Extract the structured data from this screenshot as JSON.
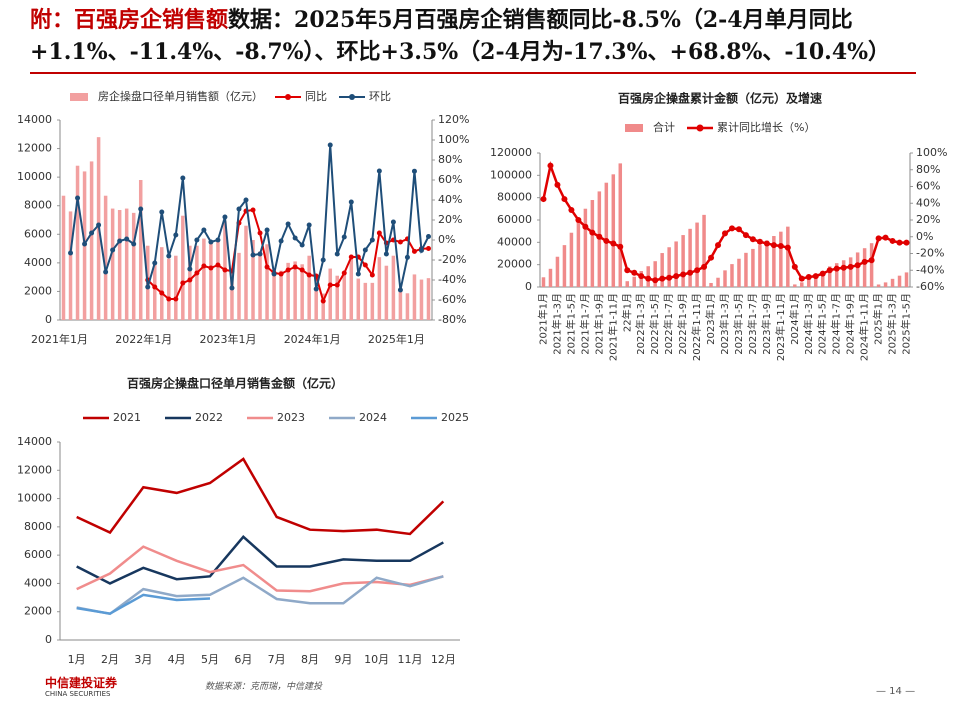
{
  "header": {
    "title_highlight": "附：百强房企销售额",
    "title_rest": "数据：2025年5月百强房企销售额同比-8.5%（2-4月单月同比+1.1%、-11.4%、-8.7%）、环比+3.5%（2-4月为-17.3%、+68.8%、-10.4%）"
  },
  "footer": {
    "logo": "中信建投证券",
    "logo_en": "CHINA SECURITIES",
    "source": "数据来源：克而瑞，中信建投",
    "page": "— 14 —"
  },
  "chart_data": [
    {
      "type": "bar_line",
      "categories": [
        "2021年1月",
        null,
        null,
        null,
        null,
        null,
        null,
        null,
        null,
        null,
        null,
        null,
        "2022年1月",
        null,
        null,
        null,
        null,
        null,
        null,
        null,
        null,
        null,
        null,
        null,
        "2023年1月",
        null,
        null,
        null,
        null,
        null,
        null,
        null,
        null,
        null,
        null,
        null,
        "2024年1月",
        null,
        null,
        null,
        null,
        null,
        null,
        null,
        null,
        null,
        null,
        null,
        "2025年1月",
        null,
        null,
        null,
        null
      ],
      "ylim": [
        0,
        14000
      ],
      "yticks": [
        0,
        2000,
        4000,
        6000,
        8000,
        10000,
        12000,
        14000
      ],
      "y2lim": [
        -80,
        120
      ],
      "y2ticks": [
        {
          "value": -80,
          "label": "-80%"
        },
        {
          "value": -60,
          "label": "-60%"
        },
        {
          "value": -40,
          "label": "-40%"
        },
        {
          "value": -20,
          "label": "-20%"
        },
        {
          "value": 0,
          "label": "0%"
        },
        {
          "value": 20,
          "label": "20%"
        },
        {
          "value": 40,
          "label": "40%"
        },
        {
          "value": 60,
          "label": "60%"
        },
        {
          "value": 80,
          "label": "80%"
        },
        {
          "value": 100,
          "label": "100%"
        },
        {
          "value": 120,
          "label": "120%"
        }
      ],
      "series": [
        {
          "name": "房企操盘口径单月销售额（亿元）",
          "kind": "bar",
          "color": "#f2a0a0",
          "values": [
            8700,
            7600,
            10800,
            10400,
            11100,
            12800,
            8700,
            7800,
            7700,
            7800,
            7500,
            9800,
            5200,
            4000,
            5100,
            4300,
            4500,
            7300,
            5200,
            5200,
            5700,
            5600,
            5600,
            6900,
            3600,
            4700,
            6600,
            5600,
            4800,
            5300,
            3500,
            3450,
            4000,
            4100,
            3900,
            4500,
            2300,
            1850,
            3600,
            3100,
            3200,
            4400,
            2900,
            2600,
            2600,
            4400,
            3800,
            4500,
            2250,
            1870,
            3190,
            2830,
            2930
          ]
        },
        {
          "name": "同比",
          "kind": "line",
          "axis": "y2",
          "color": "#e00000",
          "values": [
            null,
            null,
            null,
            null,
            null,
            null,
            null,
            null,
            null,
            null,
            null,
            null,
            -40,
            -47,
            -53,
            -59,
            -59,
            -43,
            -40,
            -33,
            -26,
            -28,
            -25,
            -30,
            -31,
            17,
            29,
            30,
            7,
            -27,
            -33,
            -34,
            -30,
            -27,
            -30,
            -35,
            -36,
            -61,
            -45,
            -45,
            -33,
            -17,
            -17,
            -25,
            -35,
            7,
            -3,
            0,
            -2,
            1.1,
            -11.4,
            -8.7,
            -8.5
          ]
        },
        {
          "name": "环比",
          "kind": "line",
          "axis": "y2",
          "color": "#1f4e79",
          "values": [
            null,
            -13,
            42,
            -4,
            7,
            15,
            -32,
            -10,
            -1,
            1,
            -4,
            31,
            -47,
            -23,
            28,
            -16,
            5,
            62,
            -29,
            0,
            10,
            -2,
            0,
            23,
            -48,
            31,
            40,
            -15,
            -14,
            10,
            -34,
            -1,
            16,
            2,
            -5,
            15,
            -49,
            -20,
            95,
            -14,
            3,
            38,
            -34,
            -10,
            0,
            69,
            -14,
            18,
            -50,
            -17.3,
            68.8,
            -10.4,
            3.5
          ]
        }
      ]
    },
    {
      "type": "bar_line",
      "title": "百强房企操盘累计金额（亿元）及增速",
      "rotate_labels": true,
      "categories": [
        "2021年1月",
        null,
        "2021年1-3月",
        null,
        "2021年1-5月",
        null,
        "2021年1-7月",
        null,
        "2021年1-9月",
        null,
        "2021年1-11月",
        null,
        "22年1月",
        null,
        "2022年1-3月",
        null,
        "2022年1-5月",
        null,
        "2022年1-7月",
        null,
        "2022年1-9月",
        null,
        "2022年1-11月",
        null,
        "2023年1月",
        null,
        "2023年1-3月",
        null,
        "2023年1-5月",
        null,
        "2023年1-7月",
        null,
        "2023年1-9月",
        null,
        "2023年1-11月",
        null,
        "2024年1月",
        null,
        "2024年1-3月",
        null,
        "2024年1-5月",
        null,
        "2024年1-7月",
        null,
        "2024年1-9月",
        null,
        "2024年1-11月",
        null,
        "2025年1月",
        null,
        "2025年1-3月",
        null,
        "2025年1-5月"
      ],
      "ylim": [
        0,
        120000
      ],
      "yticks": [
        0,
        20000,
        40000,
        60000,
        80000,
        100000,
        120000
      ],
      "y2lim": [
        -60,
        100
      ],
      "y2ticks": [
        {
          "value": -60,
          "label": "-60%"
        },
        {
          "value": -40,
          "label": "-40%"
        },
        {
          "value": -20,
          "label": "-20%"
        },
        {
          "value": 0,
          "label": "0%"
        },
        {
          "value": 20,
          "label": "20%"
        },
        {
          "value": 40,
          "label": "40%"
        },
        {
          "value": 60,
          "label": "60%"
        },
        {
          "value": 80,
          "label": "80%"
        },
        {
          "value": 100,
          "label": "100%"
        }
      ],
      "series": [
        {
          "name": "合计",
          "kind": "bar",
          "color": "#f08a8a",
          "values": [
            8700,
            16300,
            27100,
            37500,
            48600,
            61400,
            70100,
            77900,
            85600,
            93400,
            100900,
            110700,
            5200,
            9200,
            14300,
            18600,
            23100,
            30400,
            35600,
            40800,
            46500,
            52100,
            57700,
            64600,
            3600,
            8300,
            14900,
            20500,
            25300,
            30600,
            34100,
            37550,
            41550,
            45650,
            49550,
            54050,
            2300,
            4150,
            7750,
            10850,
            14050,
            18450,
            21350,
            23950,
            26550,
            30950,
            34750,
            39250,
            2250,
            4120,
            7310,
            10140,
            13070
          ]
        },
        {
          "name": "累计同比增长（%）",
          "kind": "line",
          "axis": "y2",
          "color": "#e00000",
          "values": [
            45,
            85,
            62,
            45,
            32,
            20,
            12,
            5,
            0,
            -5,
            -8,
            -12,
            -40,
            -43,
            -47,
            -50,
            -52,
            -50,
            -49,
            -47,
            -45,
            -43,
            -40,
            -36,
            -25,
            -10,
            4,
            10,
            9,
            2,
            -3,
            -6,
            -8,
            -10,
            -11,
            -13,
            -36,
            -50,
            -48,
            -47,
            -44,
            -40,
            -38,
            -37,
            -36,
            -34,
            -30,
            -28,
            -2,
            -1,
            -5,
            -7,
            -7
          ]
        }
      ]
    },
    {
      "type": "line",
      "title": "百强房企操盘口径单月销售金额（亿元）",
      "categories": [
        "1月",
        "2月",
        "3月",
        "4月",
        "5月",
        "6月",
        "7月",
        "8月",
        "9月",
        "10月",
        "11月",
        "12月"
      ],
      "ylim": [
        0,
        14000
      ],
      "yticks": [
        0,
        2000,
        4000,
        6000,
        8000,
        10000,
        12000,
        14000
      ],
      "series": [
        {
          "name": "2021",
          "color": "#c00000",
          "values": [
            8700,
            7600,
            10800,
            10400,
            11100,
            12800,
            8700,
            7800,
            7700,
            7800,
            7500,
            9800
          ]
        },
        {
          "name": "2022",
          "color": "#17375e",
          "values": [
            5200,
            4000,
            5100,
            4300,
            4500,
            7300,
            5200,
            5200,
            5700,
            5600,
            5600,
            6900
          ]
        },
        {
          "name": "2023",
          "color": "#f08c8c",
          "values": [
            3600,
            4700,
            6600,
            5600,
            4800,
            5300,
            3500,
            3450,
            4000,
            4100,
            3900,
            4500
          ]
        },
        {
          "name": "2024",
          "color": "#8fa9c8",
          "values": [
            2300,
            1850,
            3600,
            3100,
            3200,
            4400,
            2900,
            2600,
            2600,
            4400,
            3800,
            4500
          ]
        },
        {
          "name": "2025",
          "color": "#5b9bd5",
          "values": [
            2250,
            1870,
            3190,
            2830,
            2930,
            null,
            null,
            null,
            null,
            null,
            null,
            null
          ]
        }
      ]
    }
  ]
}
